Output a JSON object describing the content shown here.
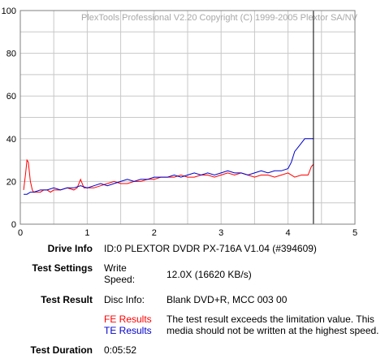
{
  "chart_data": {
    "type": "line",
    "watermark": "PlexTools Professional V2.20 Copyright (C) 1999-2005 Plextor SA/NV",
    "xlim": [
      0,
      5
    ],
    "ylim": [
      0,
      100
    ],
    "x_ticks": [
      "0",
      "1",
      "2",
      "3",
      "4",
      "5"
    ],
    "y_ticks": [
      "0",
      "20",
      "40",
      "60",
      "80",
      "100"
    ],
    "grid": true,
    "end_marker_x": 4.38,
    "series": [
      {
        "name": "FE Results",
        "color": "#ff0000",
        "x": [
          0.05,
          0.08,
          0.1,
          0.12,
          0.15,
          0.18,
          0.2,
          0.25,
          0.3,
          0.35,
          0.4,
          0.45,
          0.5,
          0.6,
          0.7,
          0.8,
          0.85,
          0.9,
          0.95,
          1.0,
          1.1,
          1.2,
          1.3,
          1.4,
          1.5,
          1.6,
          1.7,
          1.8,
          1.9,
          2.0,
          2.1,
          2.2,
          2.3,
          2.4,
          2.5,
          2.6,
          2.7,
          2.8,
          2.9,
          3.0,
          3.1,
          3.2,
          3.3,
          3.4,
          3.5,
          3.6,
          3.7,
          3.8,
          3.9,
          4.0,
          4.1,
          4.2,
          4.3,
          4.35,
          4.38
        ],
        "y": [
          16,
          24,
          30,
          29,
          20,
          16,
          15,
          15,
          15,
          16,
          16,
          15,
          16,
          16,
          17,
          16,
          17,
          21,
          17,
          17,
          17,
          18,
          19,
          20,
          19,
          19,
          20,
          20,
          21,
          21,
          22,
          22,
          22,
          23,
          22,
          22,
          23,
          23,
          22,
          23,
          24,
          23,
          24,
          23,
          22,
          23,
          23,
          22,
          23,
          24,
          22,
          23,
          23,
          27,
          28
        ]
      },
      {
        "name": "TE Results",
        "color": "#0000cc",
        "x": [
          0.05,
          0.1,
          0.15,
          0.2,
          0.3,
          0.4,
          0.5,
          0.6,
          0.7,
          0.8,
          0.9,
          1.0,
          1.1,
          1.2,
          1.3,
          1.4,
          1.5,
          1.6,
          1.7,
          1.8,
          1.9,
          2.0,
          2.1,
          2.2,
          2.3,
          2.4,
          2.5,
          2.6,
          2.7,
          2.8,
          2.9,
          3.0,
          3.1,
          3.2,
          3.3,
          3.4,
          3.5,
          3.6,
          3.7,
          3.8,
          3.9,
          4.0,
          4.05,
          4.1,
          4.15,
          4.2,
          4.25,
          4.3,
          4.35,
          4.38
        ],
        "y": [
          14,
          14,
          15,
          15,
          16,
          16,
          17,
          16,
          17,
          17,
          18,
          17,
          18,
          19,
          18,
          19,
          20,
          21,
          20,
          21,
          21,
          22,
          22,
          22,
          23,
          22,
          23,
          24,
          23,
          24,
          23,
          24,
          25,
          24,
          24,
          23,
          24,
          25,
          24,
          25,
          25,
          26,
          29,
          34,
          36,
          38,
          40,
          40,
          40,
          40
        ]
      }
    ]
  },
  "info": {
    "drive_info_label": "Drive Info",
    "drive_info_value": "ID:0 PLEXTOR DVDR PX-716A V1.04 (#394609)",
    "test_settings_label": "Test Settings",
    "write_speed_label_1": "Write",
    "write_speed_label_2": "Speed:",
    "write_speed_value": "12.0X (16620 KB/s)",
    "test_result_label": "Test Result",
    "disc_info_label": "Disc Info:",
    "disc_info_value": "Blank DVD+R, MCC 003 00",
    "fe_results_label": "FE Results",
    "te_results_label": "TE Results",
    "result_message_1": "The test result exceeds the limitation value. This",
    "result_message_2": "media should not be written at the highest speed.",
    "test_duration_label": "Test Duration",
    "test_duration_value": "0:05:52"
  },
  "colors": {
    "fe": "#ff0000",
    "te": "#0000cc",
    "grid": "#c8c8c8",
    "axis": "#000000"
  }
}
